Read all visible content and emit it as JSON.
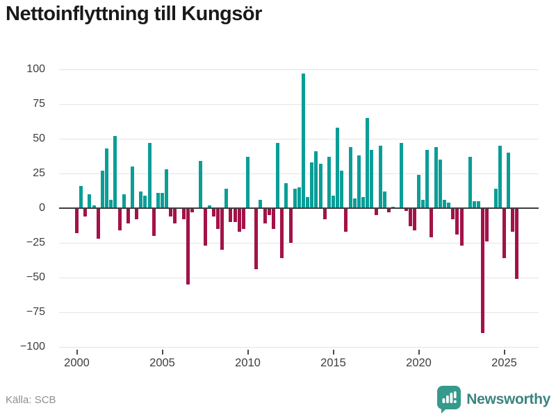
{
  "title": "Nettoinflyttning till Kungsör",
  "source": "Källa: SCB",
  "branding": {
    "name": "Newsworthy"
  },
  "colors": {
    "positive": "#0a9e97",
    "negative": "#a31248",
    "grid": "#e4e4e4",
    "zero_line": "#3d3d3d",
    "axis_text": "#3d3d3d",
    "title_text": "#1a1a1a",
    "source_text": "#8f8f8f",
    "brand_icon": "#35998c",
    "brand_text": "#3b847e",
    "background": "#ffffff"
  },
  "chart_data": {
    "type": "bar",
    "title": "Nettoinflyttning till Kungsör",
    "xlabel": "",
    "ylabel": "",
    "x_unit": "quarter",
    "ylim": [
      -100,
      100
    ],
    "y_ticks": [
      100,
      75,
      50,
      25,
      0,
      -25,
      -50,
      -75,
      -100
    ],
    "x_tick_years": [
      2000,
      2005,
      2010,
      2015,
      2020,
      2025
    ],
    "grid": true,
    "legend": false,
    "categories": [
      "2000 Q1",
      "2000 Q2",
      "2000 Q3",
      "2000 Q4",
      "2001 Q1",
      "2001 Q2",
      "2001 Q3",
      "2001 Q4",
      "2002 Q1",
      "2002 Q2",
      "2002 Q3",
      "2002 Q4",
      "2003 Q1",
      "2003 Q2",
      "2003 Q3",
      "2003 Q4",
      "2004 Q1",
      "2004 Q2",
      "2004 Q3",
      "2004 Q4",
      "2005 Q1",
      "2005 Q2",
      "2005 Q3",
      "2005 Q4",
      "2006 Q1",
      "2006 Q2",
      "2006 Q3",
      "2006 Q4",
      "2007 Q1",
      "2007 Q2",
      "2007 Q3",
      "2007 Q4",
      "2008 Q1",
      "2008 Q2",
      "2008 Q3",
      "2008 Q4",
      "2009 Q1",
      "2009 Q2",
      "2009 Q3",
      "2009 Q4",
      "2010 Q1",
      "2010 Q2",
      "2010 Q3",
      "2010 Q4",
      "2011 Q1",
      "2011 Q2",
      "2011 Q3",
      "2011 Q4",
      "2012 Q1",
      "2012 Q2",
      "2012 Q3",
      "2012 Q4",
      "2013 Q1",
      "2013 Q2",
      "2013 Q3",
      "2013 Q4",
      "2014 Q1",
      "2014 Q2",
      "2014 Q3",
      "2014 Q4",
      "2015 Q1",
      "2015 Q2",
      "2015 Q3",
      "2015 Q4",
      "2016 Q1",
      "2016 Q2",
      "2016 Q3",
      "2016 Q4",
      "2017 Q1",
      "2017 Q2",
      "2017 Q3",
      "2017 Q4",
      "2018 Q1",
      "2018 Q2",
      "2018 Q3",
      "2018 Q4",
      "2019 Q1",
      "2019 Q2",
      "2019 Q3",
      "2019 Q4",
      "2020 Q1",
      "2020 Q2",
      "2020 Q3",
      "2020 Q4",
      "2021 Q1",
      "2021 Q2",
      "2021 Q3",
      "2021 Q4",
      "2022 Q1",
      "2022 Q2",
      "2022 Q3",
      "2022 Q4",
      "2023 Q1",
      "2023 Q2",
      "2023 Q3",
      "2023 Q4",
      "2024 Q1",
      "2024 Q2",
      "2024 Q3",
      "2024 Q4",
      "2025 Q1",
      "2025 Q2",
      "2025 Q3",
      "2025 Q4"
    ],
    "values": [
      -18,
      16,
      -6,
      10,
      2,
      -22,
      27,
      43,
      6,
      52,
      -16,
      10,
      -11,
      30,
      -8,
      12,
      9,
      47,
      -20,
      11,
      11,
      28,
      -6,
      -11,
      0,
      -8,
      -55,
      -3,
      0,
      34,
      -27,
      2,
      -6,
      -15,
      -30,
      14,
      -10,
      -10,
      -17,
      -15,
      37,
      0,
      -44,
      6,
      -11,
      -5,
      -15,
      47,
      -36,
      18,
      -25,
      14,
      15,
      97,
      8,
      33,
      41,
      32,
      -8,
      37,
      9,
      58,
      27,
      -17,
      44,
      7,
      38,
      8,
      65,
      42,
      -5,
      45,
      12,
      -3,
      1,
      0,
      47,
      -2,
      -13,
      -16,
      24,
      6,
      42,
      -21,
      44,
      35,
      6,
      4,
      -8,
      -19,
      -27,
      0,
      37,
      5,
      5,
      -90,
      -24,
      0,
      14,
      45,
      -36,
      40,
      -17,
      -51
    ]
  }
}
